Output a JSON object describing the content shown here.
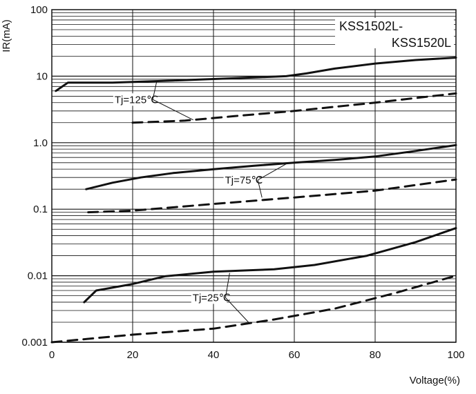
{
  "chart_data": {
    "type": "line",
    "title": "",
    "xlabel": "Voltage(%)",
    "ylabel": "IR(mA)",
    "xlim": [
      0,
      100
    ],
    "ylim": [
      0.001,
      100
    ],
    "yscale": "log",
    "x_ticks": [
      "0",
      "20",
      "40",
      "60",
      "80",
      "100"
    ],
    "y_ticks": [
      "0.001",
      "0.01",
      "0.1",
      "1.0",
      "10",
      "100"
    ],
    "grid": true,
    "legend": {
      "placement": "top-right",
      "lines": [
        "KSS1502L-",
        "KSS1520L"
      ]
    },
    "series": [
      {
        "style": "solid",
        "color": "#111111",
        "points": [
          [
            1,
            6
          ],
          [
            4,
            8
          ],
          [
            15,
            8
          ],
          [
            30,
            8.6
          ],
          [
            45,
            9.3
          ],
          [
            58,
            10
          ],
          [
            63,
            11
          ],
          [
            70,
            13
          ],
          [
            80,
            15.5
          ],
          [
            90,
            17.5
          ],
          [
            100,
            19
          ]
        ]
      },
      {
        "style": "dashed",
        "color": "#111111",
        "points": [
          [
            20,
            2
          ],
          [
            33,
            2.15
          ],
          [
            45,
            2.5
          ],
          [
            60,
            3
          ],
          [
            80,
            4
          ],
          [
            100,
            5.5
          ]
        ]
      },
      {
        "style": "solid",
        "color": "#111111",
        "points": [
          [
            8.5,
            0.2
          ],
          [
            15,
            0.25
          ],
          [
            22,
            0.3
          ],
          [
            30,
            0.35
          ],
          [
            40,
            0.4
          ],
          [
            50,
            0.45
          ],
          [
            60,
            0.5
          ],
          [
            70,
            0.55
          ],
          [
            80,
            0.62
          ],
          [
            90,
            0.75
          ],
          [
            100,
            0.92
          ]
        ]
      },
      {
        "style": "dashed",
        "color": "#111111",
        "points": [
          [
            9,
            0.09
          ],
          [
            20,
            0.095
          ],
          [
            40,
            0.12
          ],
          [
            60,
            0.15
          ],
          [
            80,
            0.19
          ],
          [
            100,
            0.28
          ]
        ]
      },
      {
        "style": "solid",
        "color": "#111111",
        "points": [
          [
            8,
            0.004
          ],
          [
            11,
            0.006
          ],
          [
            20,
            0.0075
          ],
          [
            28,
            0.0098
          ],
          [
            40,
            0.0115
          ],
          [
            55,
            0.0125
          ],
          [
            65,
            0.0145
          ],
          [
            78,
            0.02
          ],
          [
            90,
            0.032
          ],
          [
            100,
            0.052
          ]
        ]
      },
      {
        "style": "dashed",
        "color": "#111111",
        "points": [
          [
            0,
            0.001
          ],
          [
            20,
            0.0013
          ],
          [
            40,
            0.0016
          ],
          [
            55,
            0.0022
          ],
          [
            70,
            0.0032
          ],
          [
            85,
            0.0055
          ],
          [
            100,
            0.01
          ]
        ]
      }
    ],
    "annotations": [
      {
        "text": "Tj=125℃",
        "point_a": [
          26,
          8.6
        ],
        "point_b": [
          35,
          2.2
        ]
      },
      {
        "text": "Tj=75℃",
        "point_a": [
          58,
          0.48
        ],
        "point_b": [
          52,
          0.15
        ]
      },
      {
        "text": "Tj=25℃",
        "point_a": [
          44,
          0.011
        ],
        "point_b": [
          49,
          0.0019
        ]
      }
    ]
  }
}
